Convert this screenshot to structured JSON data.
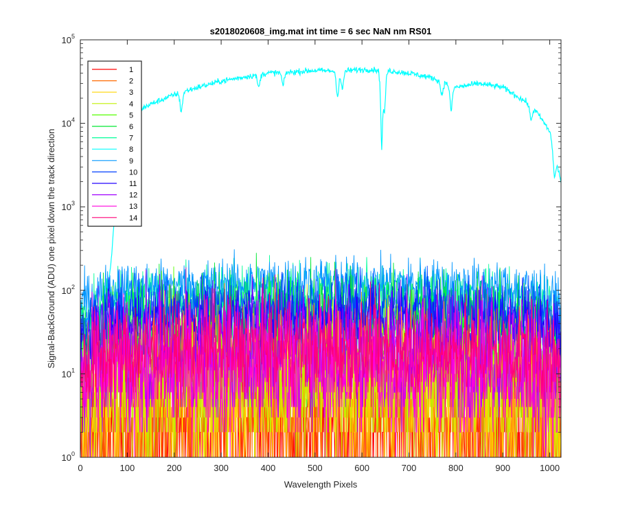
{
  "chart_data": {
    "type": "line",
    "title": "s2018020608_img.mat int time = 6 sec  NaN nm RS01",
    "xlabel": "Wavelength Pixels",
    "ylabel": "Signal-BackGround (ADU) one pixel down the track direction",
    "xlim": [
      0,
      1024
    ],
    "ylim": [
      1,
      100000
    ],
    "yscale": "log",
    "grid": false,
    "legend_position": "top-left",
    "x_ticks": [
      "0",
      "100",
      "200",
      "300",
      "400",
      "500",
      "600",
      "700",
      "800",
      "900",
      "1000"
    ],
    "y_ticks": [
      {
        "base": "10",
        "exp": "0"
      },
      {
        "base": "10",
        "exp": "1"
      },
      {
        "base": "10",
        "exp": "2"
      },
      {
        "base": "10",
        "exp": "3"
      },
      {
        "base": "10",
        "exp": "4"
      },
      {
        "base": "10",
        "exp": "5"
      }
    ],
    "x_sampling": {
      "start": 0,
      "end": 1024,
      "count": 1025
    },
    "series": [
      {
        "name": "1",
        "color": "#ff0000",
        "level": 2,
        "noise": 1.2
      },
      {
        "name": "2",
        "color": "#ff6a00",
        "level": 3,
        "noise": 1.2
      },
      {
        "name": "3",
        "color": "#ffd500",
        "level": 5,
        "noise": 1.1
      },
      {
        "name": "4",
        "color": "#c0f000",
        "level": 7,
        "noise": 1.0
      },
      {
        "name": "5",
        "color": "#55ff00",
        "level": 12,
        "noise": 0.9
      },
      {
        "name": "6",
        "color": "#00e833",
        "level": 35,
        "noise": 0.7
      },
      {
        "name": "7",
        "color": "#00ff99",
        "level": 60,
        "noise": 0.5
      },
      {
        "name": "8",
        "color": "#00ffff",
        "spectrum": true,
        "profile": {
          "x": [
            0,
            40,
            55,
            65,
            72,
            80,
            90,
            100,
            120,
            150,
            200,
            250,
            300,
            350,
            400,
            450,
            500,
            550,
            600,
            620,
            650,
            700,
            750,
            800,
            850,
            900,
            950,
            975,
            1000,
            1024
          ],
          "y": [
            40,
            55,
            80,
            200,
            700,
            3000,
            8000,
            11000,
            14000,
            17000,
            22000,
            27000,
            32000,
            36000,
            40000,
            41000,
            43000,
            42000,
            44000,
            44000,
            43000,
            40000,
            35000,
            27000,
            30000,
            27000,
            18000,
            13000,
            8000,
            2000
          ]
        },
        "dips": [
          {
            "x": 215,
            "depth": 0.6
          },
          {
            "x": 380,
            "depth": 0.7
          },
          {
            "x": 432,
            "depth": 0.7
          },
          {
            "x": 548,
            "depth": 0.5
          },
          {
            "x": 558,
            "depth": 0.6
          },
          {
            "x": 642,
            "depth": 0.12
          },
          {
            "x": 648,
            "depth": 0.35
          },
          {
            "x": 770,
            "depth": 0.7
          },
          {
            "x": 790,
            "depth": 0.5
          },
          {
            "x": 960,
            "depth": 0.7
          },
          {
            "x": 1010,
            "depth": 0.5
          }
        ]
      },
      {
        "name": "9",
        "color": "#0096ff",
        "level": 100,
        "noise": 0.35
      },
      {
        "name": "10",
        "color": "#0040ff",
        "level": 50,
        "noise": 0.45
      },
      {
        "name": "11",
        "color": "#2200ff",
        "level": 35,
        "noise": 0.55
      },
      {
        "name": "12",
        "color": "#a000ff",
        "level": 15,
        "noise": 0.9
      },
      {
        "name": "13",
        "color": "#ff00dd",
        "level": 10,
        "noise": 1.0
      },
      {
        "name": "14",
        "color": "#ff0077",
        "level": 16,
        "noise": 0.7
      }
    ]
  }
}
